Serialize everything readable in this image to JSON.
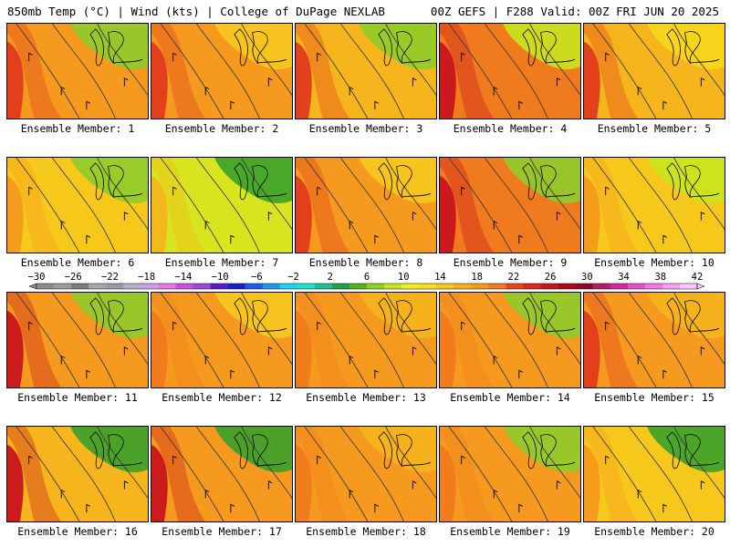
{
  "header": {
    "left_title": "850mb Temp (°C) | Wind (kts) | College of DuPage NEXLAB",
    "right_title": "00Z GEFS | F288 Valid: 00Z FRI JUN 20 2025"
  },
  "panels": [
    {
      "label": "Ensemble Member: 1",
      "base": "#f59a1e",
      "west": "#e23a1e",
      "north": "#8fcc2a"
    },
    {
      "label": "Ensemble Member: 2",
      "base": "#f59a1e",
      "west": "#e23a1e",
      "north": "#f7c81e"
    },
    {
      "label": "Ensemble Member: 3",
      "base": "#f6b51c",
      "west": "#e23a1e",
      "north": "#8fcc2a"
    },
    {
      "label": "Ensemble Member: 4",
      "base": "#f07a1e",
      "west": "#c8141e",
      "north": "#c8e61e"
    },
    {
      "label": "Ensemble Member: 5",
      "base": "#f6b51c",
      "west": "#e23a1e",
      "north": "#f7d81e"
    },
    {
      "label": "Ensemble Member: 6",
      "base": "#f6c81c",
      "west": "#f59a1e",
      "north": "#8fcc2a"
    },
    {
      "label": "Ensemble Member: 7",
      "base": "#d8e41e",
      "west": "#f6b51c",
      "north": "#3aa02a"
    },
    {
      "label": "Ensemble Member: 8",
      "base": "#f59a1e",
      "west": "#e23a1e",
      "north": "#f7c81e"
    },
    {
      "label": "Ensemble Member: 9",
      "base": "#f07a1e",
      "west": "#c8141e",
      "north": "#8fcc2a"
    },
    {
      "label": "Ensemble Member: 10",
      "base": "#f6c81c",
      "west": "#f59a1e",
      "north": "#c8e61e"
    },
    {
      "label": "Ensemble Member: 11",
      "base": "#f59a1e",
      "west": "#c8141e",
      "north": "#8fcc2a"
    },
    {
      "label": "Ensemble Member: 12",
      "base": "#f59a1e",
      "west": "#f07a1e",
      "north": "#f7c81e"
    },
    {
      "label": "Ensemble Member: 13",
      "base": "#f59a1e",
      "west": "#f07a1e",
      "north": "#f6b51c"
    },
    {
      "label": "Ensemble Member: 14",
      "base": "#f59a1e",
      "west": "#f07a1e",
      "north": "#8fcc2a"
    },
    {
      "label": "Ensemble Member: 15",
      "base": "#f59a1e",
      "west": "#e23a1e",
      "north": "#f6b51c"
    },
    {
      "label": "Ensemble Member: 16",
      "base": "#f6b51c",
      "west": "#c8141e",
      "north": "#3aa02a"
    },
    {
      "label": "Ensemble Member: 17",
      "base": "#f59a1e",
      "west": "#c8141e",
      "north": "#3aa02a"
    },
    {
      "label": "Ensemble Member: 18",
      "base": "#f59a1e",
      "west": "#f07a1e",
      "north": "#f6b51c"
    },
    {
      "label": "Ensemble Member: 19",
      "base": "#f59a1e",
      "west": "#f07a1e",
      "north": "#8fcc2a"
    },
    {
      "label": "Ensemble Member: 20",
      "base": "#f6c81c",
      "west": "#f59a1e",
      "north": "#3aa02a"
    }
  ],
  "colorbar": {
    "labels": [
      "−30",
      "−26",
      "−22",
      "−18",
      "−14",
      "−10",
      "−6",
      "−2",
      "2",
      "6",
      "10",
      "14",
      "18",
      "22",
      "26",
      "30",
      "34",
      "38",
      "42"
    ],
    "colors": [
      "#8c8c8c",
      "#9c9c9c",
      "#7c7c7c",
      "#a8a8a8",
      "#9a9aa8",
      "#b4b4c8",
      "#c8a0e6",
      "#e878e8",
      "#c850e6",
      "#9b4bd6",
      "#5a1ec8",
      "#1e1ecc",
      "#1e5ae6",
      "#1e96e6",
      "#1ed2f0",
      "#1ee6c8",
      "#1ebe96",
      "#1ea050",
      "#50b41e",
      "#8cd21e",
      "#c8e61e",
      "#f0f01e",
      "#fade1e",
      "#f6c81c",
      "#f6b01c",
      "#f59a1e",
      "#f07a1e",
      "#e6461e",
      "#dc281e",
      "#c8141e",
      "#aa0a1e",
      "#8c0a28",
      "#b41e64",
      "#d228a0",
      "#e650c8",
      "#f078e6",
      "#f5a0f0",
      "#fac8fa"
    ]
  }
}
